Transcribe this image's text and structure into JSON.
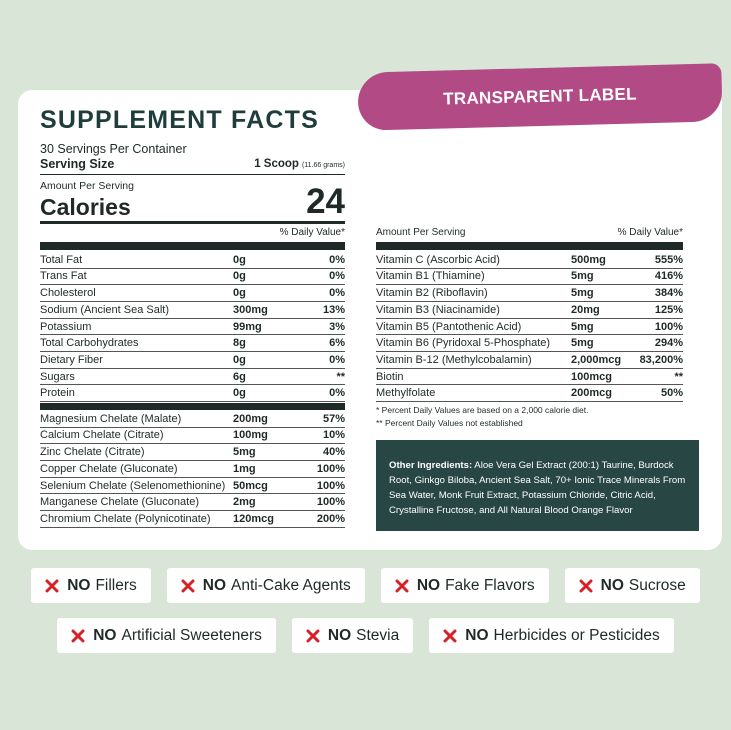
{
  "header": {
    "badge": "TRANSPARENT LABEL",
    "title": "SUPPLEMENT FACTS"
  },
  "serving": {
    "servings": "30 Servings Per Container",
    "size_label": "Serving Size",
    "size": "1 Scoop",
    "size_note": "(11.66 grams)"
  },
  "calories": {
    "amount_label": "Amount Per Serving",
    "label": "Calories",
    "value": 24,
    "dv_header": "% Daily Value*"
  },
  "left": {
    "macros": [
      [
        "Total Fat",
        "0g",
        "0%"
      ],
      [
        "Trans Fat",
        "0g",
        "0%"
      ],
      [
        "Cholesterol",
        "0g",
        "0%"
      ],
      [
        "Sodium (Ancient Sea Salt)",
        "300mg",
        "13%"
      ],
      [
        "Potassium",
        "99mg",
        "3%"
      ],
      [
        "Total Carbohydrates",
        "8g",
        "6%"
      ],
      [
        "Dietary Fiber",
        "0g",
        "0%"
      ],
      [
        "Sugars",
        "6g",
        "**"
      ],
      [
        "Protein",
        "0g",
        "0%"
      ]
    ],
    "minerals": [
      [
        "Magnesium Chelate (Malate)",
        "200mg",
        "57%"
      ],
      [
        "Calcium Chelate (Citrate)",
        "100mg",
        "10%"
      ],
      [
        "Zinc Chelate (Citrate)",
        "5mg",
        "40%"
      ],
      [
        "Copper Chelate (Gluconate)",
        "1mg",
        "100%"
      ],
      [
        "Selenium Chelate (Selenomethionine)",
        "50mcg",
        "100%"
      ],
      [
        "Manganese Chelate (Gluconate)",
        "2mg",
        "100%"
      ],
      [
        "Chromium Chelate (Polynicotinate)",
        "120mcg",
        "200%"
      ]
    ]
  },
  "right": {
    "amount_label": "Amount Per Serving",
    "dv_header": "% Daily Value*",
    "rows": [
      [
        "Vitamin C (Ascorbic Acid)",
        "500mg",
        "555%"
      ],
      [
        "Vitamin B1 (Thiamine)",
        "5mg",
        "416%"
      ],
      [
        "Vitamin B2 (Riboflavin)",
        "5mg",
        "384%"
      ],
      [
        "Vitamin B3 (Niacinamide)",
        "20mg",
        "125%"
      ],
      [
        "Vitamin B5 (Pantothenic Acid)",
        "5mg",
        "100%"
      ],
      [
        "Vitamin B6 (Pyridoxal 5-Phosphate)",
        "5mg",
        "294%"
      ],
      [
        "Vitamin B-12 (Methylcobalamin)",
        "2,000mcg",
        "83,200%"
      ],
      [
        "Biotin",
        "100mcg",
        "**"
      ],
      [
        "Methylfolate",
        "200mcg",
        "50%"
      ]
    ],
    "footnotes": [
      "*  Percent Daily Values are based on a 2,000 calorie diet.",
      "** Percent Daily Values not established"
    ],
    "other_label": "Other Ingredients:",
    "other_text": "Aloe Vera Gel Extract (200:1) Taurine, Burdock Root, Ginkgo Biloba, Ancient Sea Salt, 70+ Ionic Trace Minerals From Sea Water, Monk Fruit Extract, Potassium Chloride, Citric Acid, Crystalline Fructose, and All Natural Blood Orange Flavor"
  },
  "claims": [
    [
      [
        "NO",
        "Fillers"
      ],
      [
        "NO",
        "Anti-Cake Agents"
      ],
      [
        "NO",
        "Fake Flavors"
      ],
      [
        "NO",
        "Sucrose"
      ]
    ],
    [
      [
        "NO",
        "Artificial Sweeteners"
      ],
      [
        "NO",
        "Stevia"
      ],
      [
        "NO",
        "Herbicides or Pesticides"
      ]
    ]
  ]
}
